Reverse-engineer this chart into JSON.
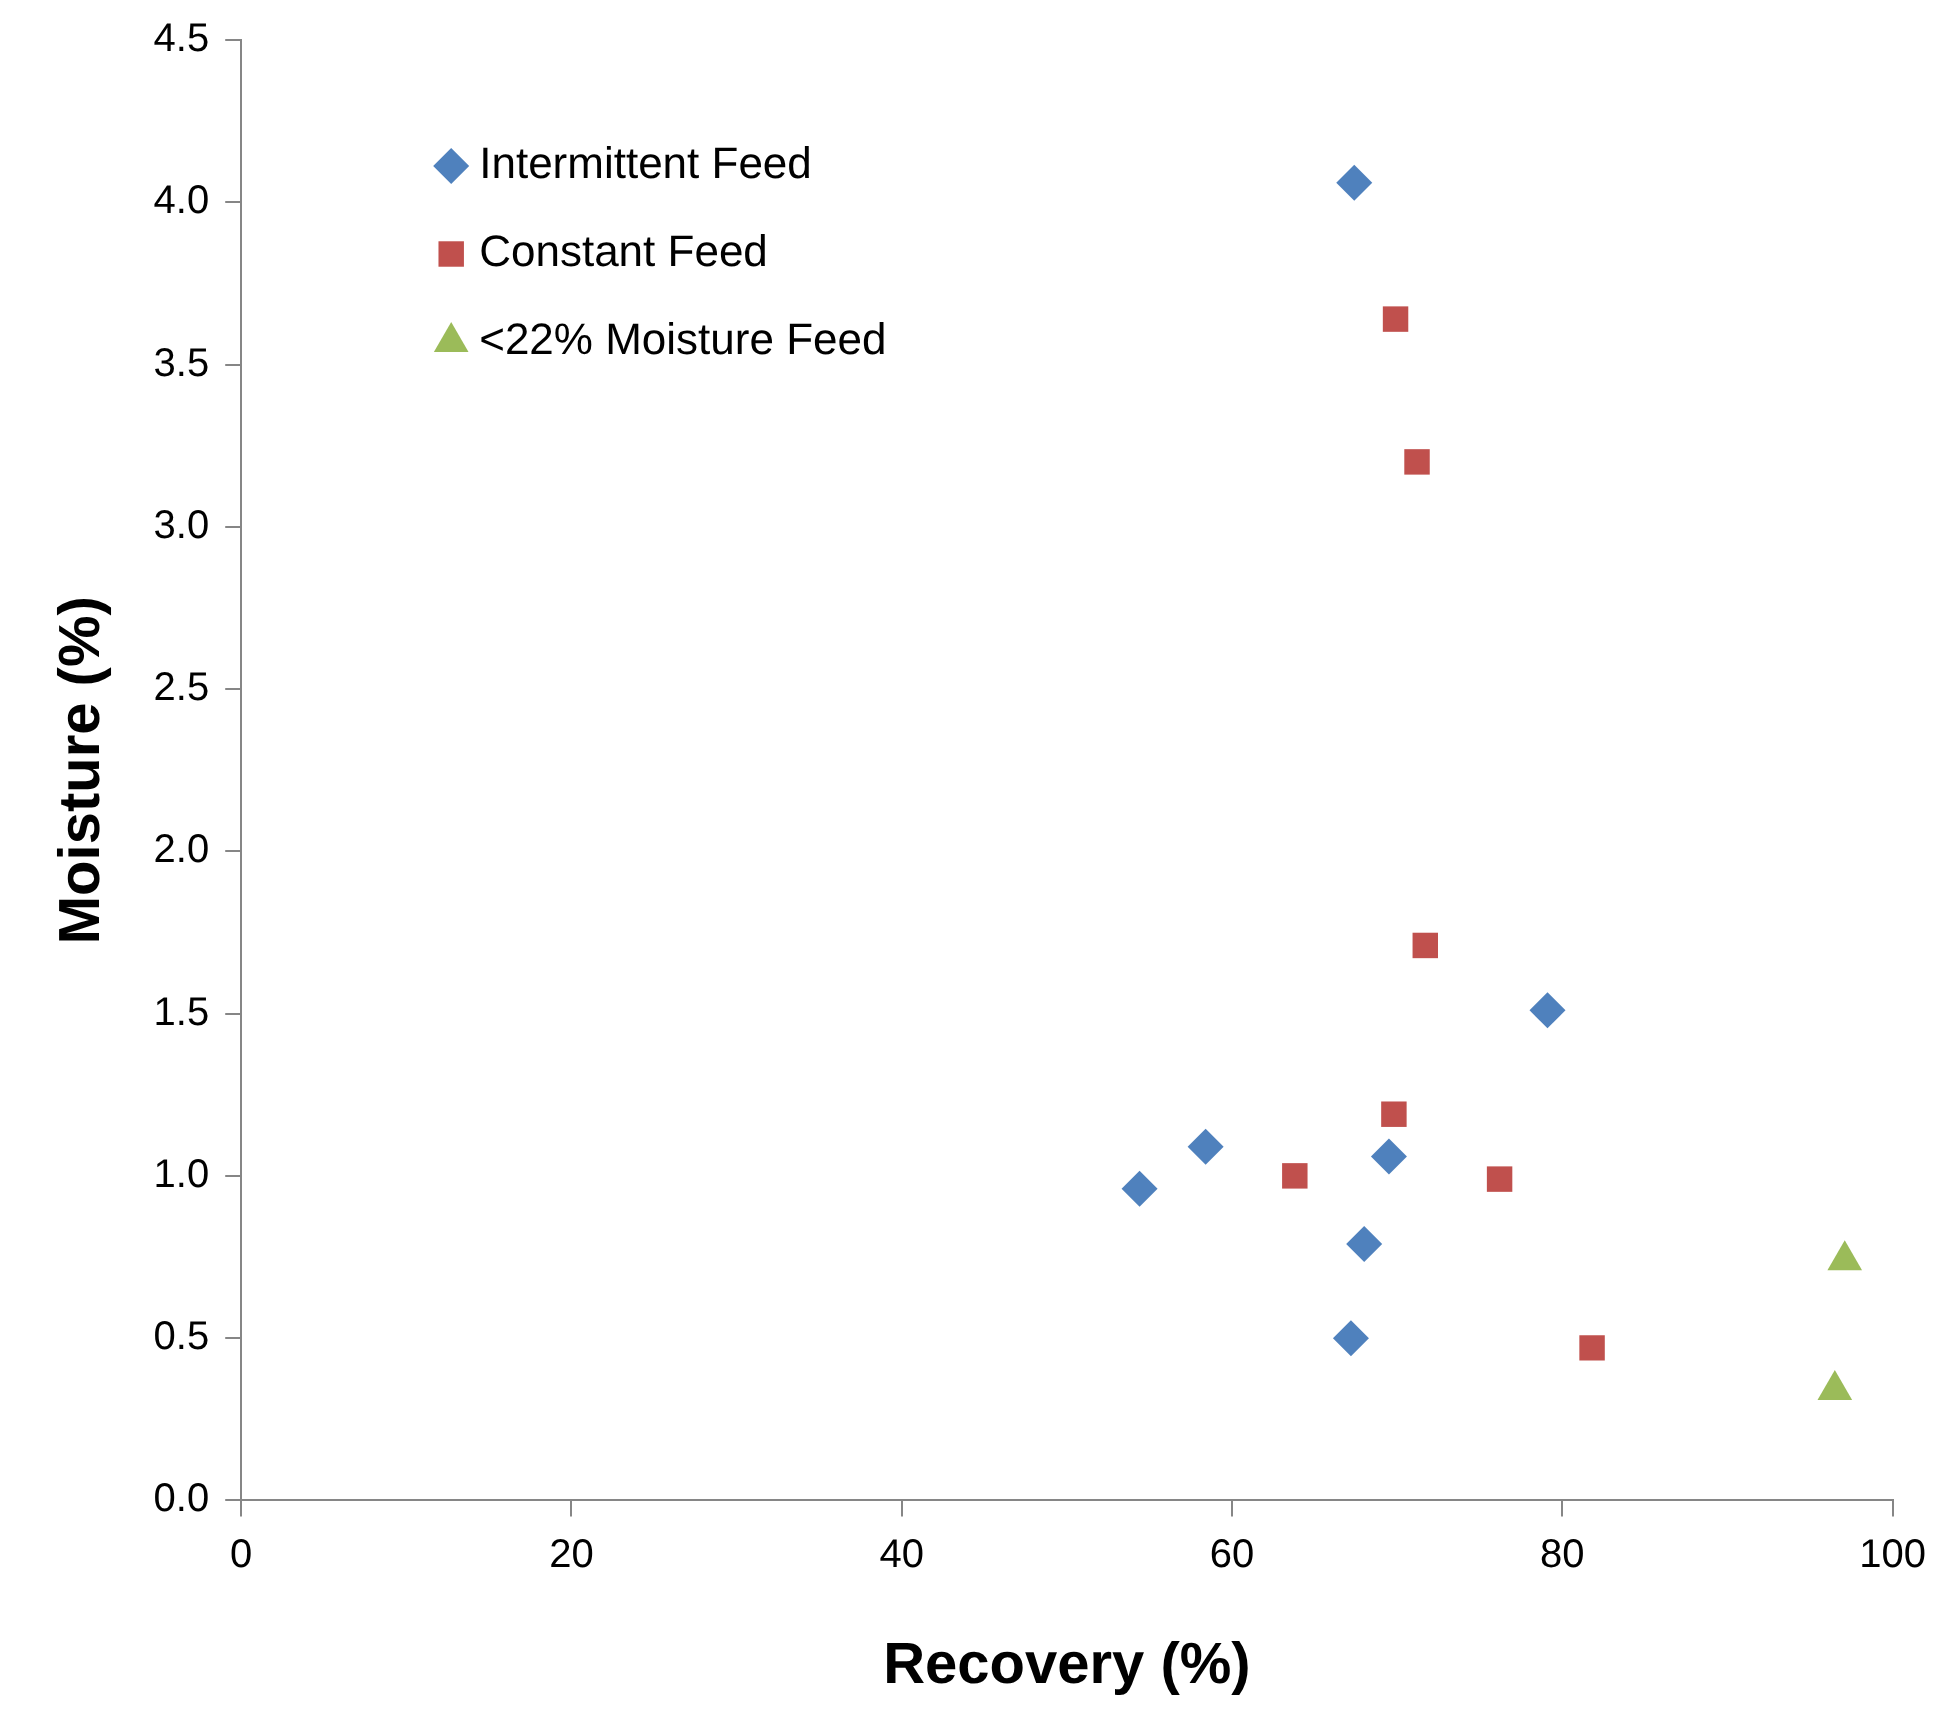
{
  "chart_data": {
    "type": "scatter",
    "xlabel": "Recovery (%)",
    "ylabel": "Moisture (%)",
    "xlim": [
      0,
      100
    ],
    "xticks": [
      0,
      20,
      40,
      60,
      80,
      100
    ],
    "ylim": [
      0,
      4.5
    ],
    "yticks": [
      {
        "value": 0,
        "label": "0.0"
      },
      {
        "value": 0.5,
        "label": "0.5"
      },
      {
        "value": 1,
        "label": "1.0"
      },
      {
        "value": 1.5,
        "label": "1.5"
      },
      {
        "value": 2,
        "label": "2.0"
      },
      {
        "value": 2.5,
        "label": "2.5"
      },
      {
        "value": 3,
        "label": "3.0"
      },
      {
        "value": 3.5,
        "label": "3.5"
      },
      {
        "value": 4,
        "label": "4.0"
      },
      {
        "value": 4.5,
        "label": "4.5"
      }
    ],
    "grid": false,
    "legend": "top left",
    "series": [
      {
        "name": "Intermittent Feed",
        "color": "#4f81bd",
        "marker": "diamond",
        "x": [
          54.4,
          58.4,
          67.4,
          69.5,
          68.0,
          67.2,
          79.1
        ],
        "values": [
          0.96,
          1.09,
          4.06,
          1.06,
          0.79,
          0.5,
          1.51
        ]
      },
      {
        "name": "Constant Feed",
        "color": "#c0504d",
        "marker": "square",
        "x": [
          69.9,
          71.2,
          71.7,
          69.8,
          63.8,
          76.2,
          81.8
        ],
        "values": [
          3.64,
          3.2,
          1.71,
          1.19,
          1.0,
          0.99,
          0.47
        ]
      },
      {
        "name": "<22% Moisture Feed",
        "color": "#9bbb59",
        "marker": "triangle",
        "x": [
          97.1,
          96.5
        ],
        "values": [
          0.74,
          0.34
        ]
      }
    ]
  }
}
